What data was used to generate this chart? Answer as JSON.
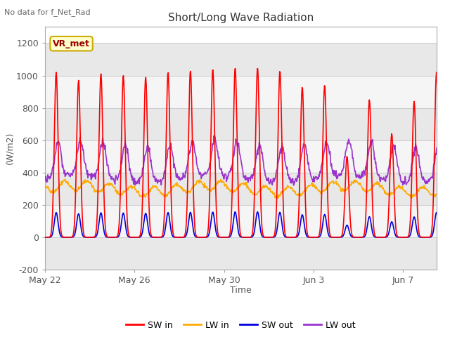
{
  "title": "Short/Long Wave Radiation",
  "xlabel": "Time",
  "ylabel": "(W/m2)",
  "annotation": "No data for f_Net_Rad",
  "label_text": "VR_met",
  "ylim": [
    -200,
    1300
  ],
  "yticks": [
    -200,
    0,
    200,
    400,
    600,
    800,
    1000,
    1200
  ],
  "xtick_labels": [
    "May 22",
    "May 26",
    "May 30",
    "Jun 3",
    "Jun 7"
  ],
  "xtick_positions": [
    0,
    4,
    8,
    12,
    16
  ],
  "xlim": [
    0,
    17.5
  ],
  "legend_entries": [
    "SW in",
    "LW in",
    "SW out",
    "LW out"
  ],
  "legend_colors": [
    "#ff0000",
    "#ffaa00",
    "#0000dd",
    "#9933cc"
  ],
  "fig_bg_color": "#ffffff",
  "plot_bg_color": "#ffffff",
  "band_colors": [
    "#e8e8e8",
    "#f5f5f5"
  ],
  "grid_line_color": "#cccccc",
  "n_days": 18,
  "annotation_color": "#666666",
  "vrmet_text_color": "#990000",
  "vrmet_bg": "#ffffcc",
  "vrmet_edge": "#ccaa00",
  "spine_color": "#aaaaaa",
  "tick_label_color": "#555555"
}
